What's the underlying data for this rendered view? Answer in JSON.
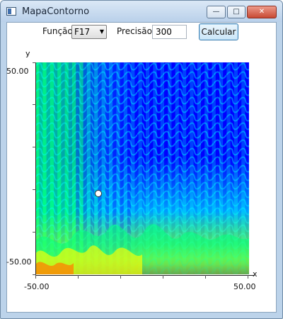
{
  "window": {
    "title": "MapaContorno",
    "controls": {
      "minimize": "—",
      "maximize": "□",
      "close": "✕"
    }
  },
  "toolbar": {
    "function_label": "Função",
    "function_value": "F17",
    "precision_label": "Precisão",
    "precision_value": "300",
    "calculate_label": "Calcular"
  },
  "plot": {
    "y_axis_label": "y",
    "x_axis_label": "x",
    "y_max_label": "50.00",
    "y_min_label": "-50.00",
    "x_min_label": "-50.00",
    "x_max_label": "50.00",
    "palette": [
      "#0000ff",
      "#00bfff",
      "#00ff80",
      "#ffff00",
      "#ff8000",
      "#ff0000"
    ],
    "marker_icon": "white-dot-marker"
  }
}
